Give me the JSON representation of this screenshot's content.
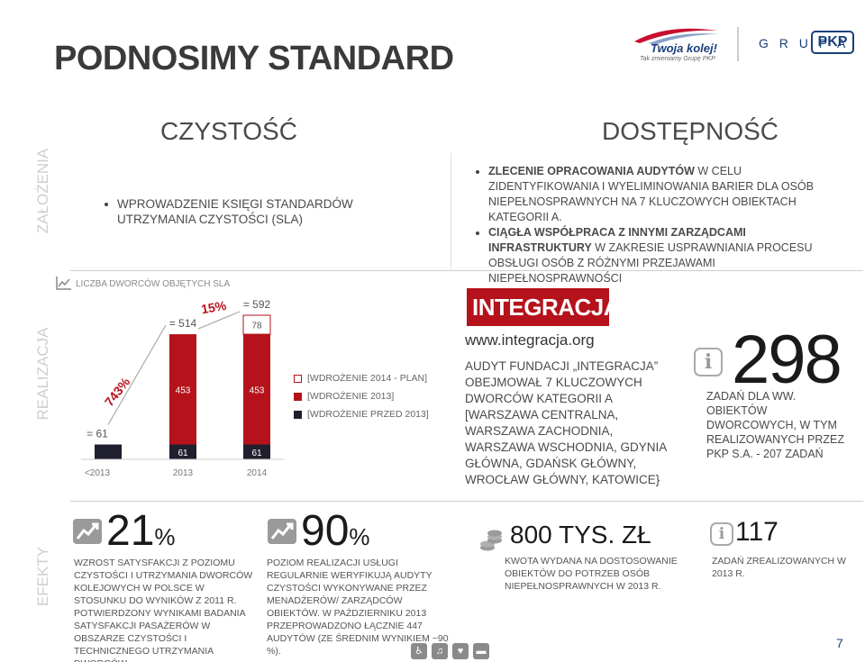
{
  "header": {
    "title": "PODNOSIMY STANDARD",
    "logo_main": "Twoja kolej!",
    "logo_sub": "Tak zmieniamy Grupę PKP",
    "grupa": "G R U P A",
    "pkp": "PKP"
  },
  "side_labels": {
    "zalozenia": "ZAŁOŻENIA",
    "realizacja": "REALIZACJA",
    "efekty": "EFEKTY"
  },
  "czystosc": {
    "heading": "CZYSTOŚĆ",
    "bullet": "WPROWADZENIE KSIĘGI STANDARDÓW UTRZYMANIA CZYSTOŚCI (SLA)"
  },
  "dostepnosc": {
    "heading": "DOSTĘPNOŚĆ",
    "bullet1_bold": "ZLECENIE OPRACOWANIA AUDYTÓW",
    "bullet1_rest": " W CELU ZIDENTYFIKOWANIA I WYELIMINOWANIA BARIER DLA OSÓB NIEPEŁNOSPRAWNYCH NA 7 KLUCZOWYCH OBIEKTACH KATEGORII A.",
    "bullet2_bold": "CIĄGŁA WSPÓŁPRACA Z INNYMI ZARZĄDCAMI INFRASTRUKTURY",
    "bullet2_rest": " W ZAKRESIE USPRAWNIANIA PROCESU OBSŁUGI OSÓB Z RÓŻNYMI PRZEJAWAMI NIEPEŁNOSPRAWNOŚCI"
  },
  "chart_data": {
    "type": "bar",
    "title": "LICZBA DWORCÓW OBJĘTYCH SLA",
    "categories": [
      "<2013",
      "2013",
      "2014"
    ],
    "series": [
      {
        "name": "[WDROŻENIE PRZED 2013]",
        "values": [
          61,
          61,
          61
        ],
        "labels": [
          "",
          "61",
          "61"
        ]
      },
      {
        "name": "[WDROŻENIE 2013]",
        "values": [
          0,
          453,
          453
        ],
        "labels": [
          "",
          "453",
          "453"
        ]
      },
      {
        "name": "[WDROŻENIE 2014 - PLAN]",
        "values": [
          0,
          0,
          78
        ],
        "labels": [
          "",
          "",
          "78"
        ]
      }
    ],
    "totals": [
      "= 61",
      "= 514",
      "= 592"
    ],
    "growth_labels": [
      "743%",
      "15%"
    ],
    "ylim": [
      0,
      592
    ],
    "colors": {
      "before": "#1f1f2e",
      "y2013": "#b5121b",
      "plan": "#ffffff"
    }
  },
  "integracja": {
    "logo": "INTEGRACJA",
    "url": "www.integracja.org",
    "line1": "AUDYT FUNDACJI „INTEGRACJA”",
    "rest": "OBEJMOWAŁ 7 KLUCZOWYCH DWORCÓW KATEGORII A [WARSZAWA CENTRALNA, WARSZAWA ZACHODNIA, WARSZAWA WSCHODNIA, GDYNIA GŁÓWNA, GDAŃSK GŁÓWNY, WROCŁAW GŁÓWNY, KATOWICE}"
  },
  "zadania": {
    "number": "298",
    "text": "ZADAŃ DLA WW. OBIEKTÓW DWORCOWYCH, W TYM REALIZOWANYCH PRZEZ PKP S.A. - 207 ZADAŃ"
  },
  "efekty": {
    "e1_number": "21",
    "e1_unit": "%",
    "e1_text": "WZROST SATYSFAKCJI Z POZIOMU CZYSTOŚCI I UTRZYMANIA DWORCÓW KOLEJOWYCH W POLSCE W STOSUNKU DO WYNIKÓW Z 2011 R. POTWIERDZONY WYNIKAMI BADANIA SATYSFAKCJI PASAŻERÓW W OBSZARZE CZYSTOŚCI I TECHNICZNEGO UTRZYMANIA DWORCÓW.",
    "e2_number": "90",
    "e2_unit": "%",
    "e2_text": "POZIOM REALIZACJI USŁUGI REGULARNIE WERYFIKUJĄ AUDYTY CZYSTOŚCI WYKONYWANE PRZEZ MENADŻERÓW/ ZARZĄDCÓW OBIEKTÓW. W PAŹDZIERNIKU 2013 PRZEPROWADZONO ŁĄCZNIE 447 AUDYTÓW (ZE ŚREDNIM WYNIKIEM ~90 %).",
    "e3_number": "800 TYS. ZŁ",
    "e3_text": "KWOTA WYDANA NA DOSTOSOWANIE OBIEKTÓW DO POTRZEB OSÓB NIEPEŁNOSPRAWNYCH W 2013 R.",
    "e4_number": "117",
    "e4_text": "ZADAŃ ZREALIZOWANYCH W 2013 R."
  },
  "page_number": "7"
}
